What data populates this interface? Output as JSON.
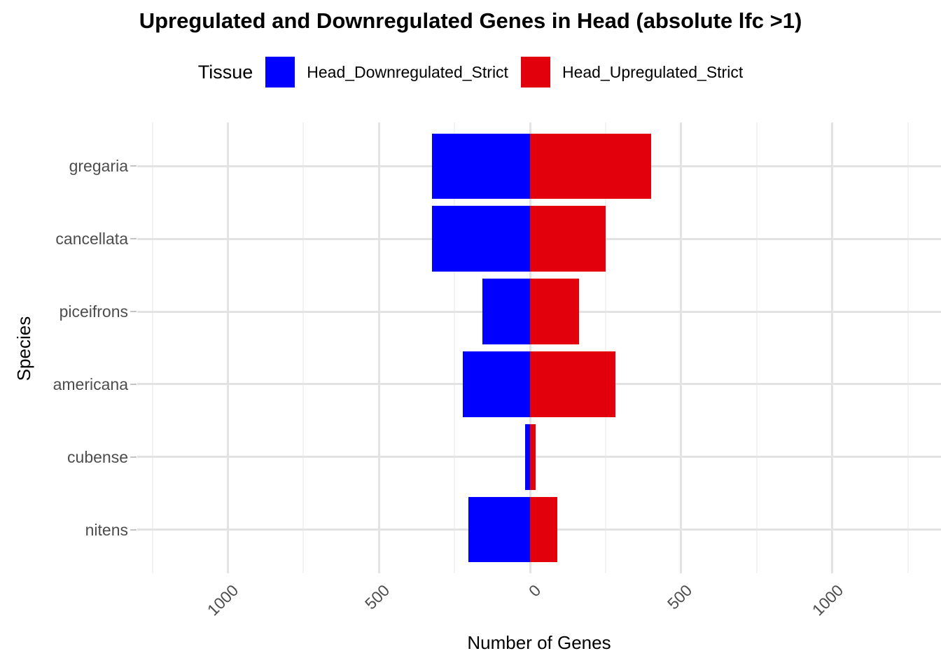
{
  "title": "Upregulated and Downregulated Genes in Head (absolute lfc >1)",
  "legend": {
    "title": "Tissue",
    "items": [
      {
        "label": "Head_Downregulated_Strict",
        "color": "#0000ff"
      },
      {
        "label": "Head_Upregulated_Strict",
        "color": "#e2000c"
      }
    ]
  },
  "chart_data": {
    "type": "bar",
    "orientation": "horizontal-diverging",
    "title": "Upregulated and Downregulated Genes in Head (absolute lfc >1)",
    "xlabel": "Number of Genes",
    "ylabel": "Species",
    "categories": [
      "gregaria",
      "cancellata",
      "piceifrons",
      "americana",
      "cubense",
      "nitens"
    ],
    "series": [
      {
        "name": "Head_Downregulated_Strict",
        "direction": "negative",
        "color": "#0000ff",
        "values": [
          324,
          324,
          157,
          222,
          16,
          204
        ]
      },
      {
        "name": "Head_Upregulated_Strict",
        "direction": "positive",
        "color": "#e2000c",
        "values": [
          400,
          251,
          162,
          283,
          19,
          90
        ]
      }
    ],
    "x_ticks_major": [
      -1000,
      -500,
      0,
      500,
      1000
    ],
    "x_tick_labels": [
      "1000",
      "500",
      "0",
      "500",
      "1000"
    ],
    "x_ticks_minor": [
      -1250,
      -750,
      -250,
      250,
      750,
      1250
    ],
    "xlim": [
      -1300,
      1360
    ],
    "grid": true,
    "legend_position": "top",
    "colors": {
      "grid_major": "#e3e3e3",
      "grid_minor": "#f2f2f2",
      "tick_text": "#4d4d4d",
      "background": "#ffffff"
    }
  }
}
